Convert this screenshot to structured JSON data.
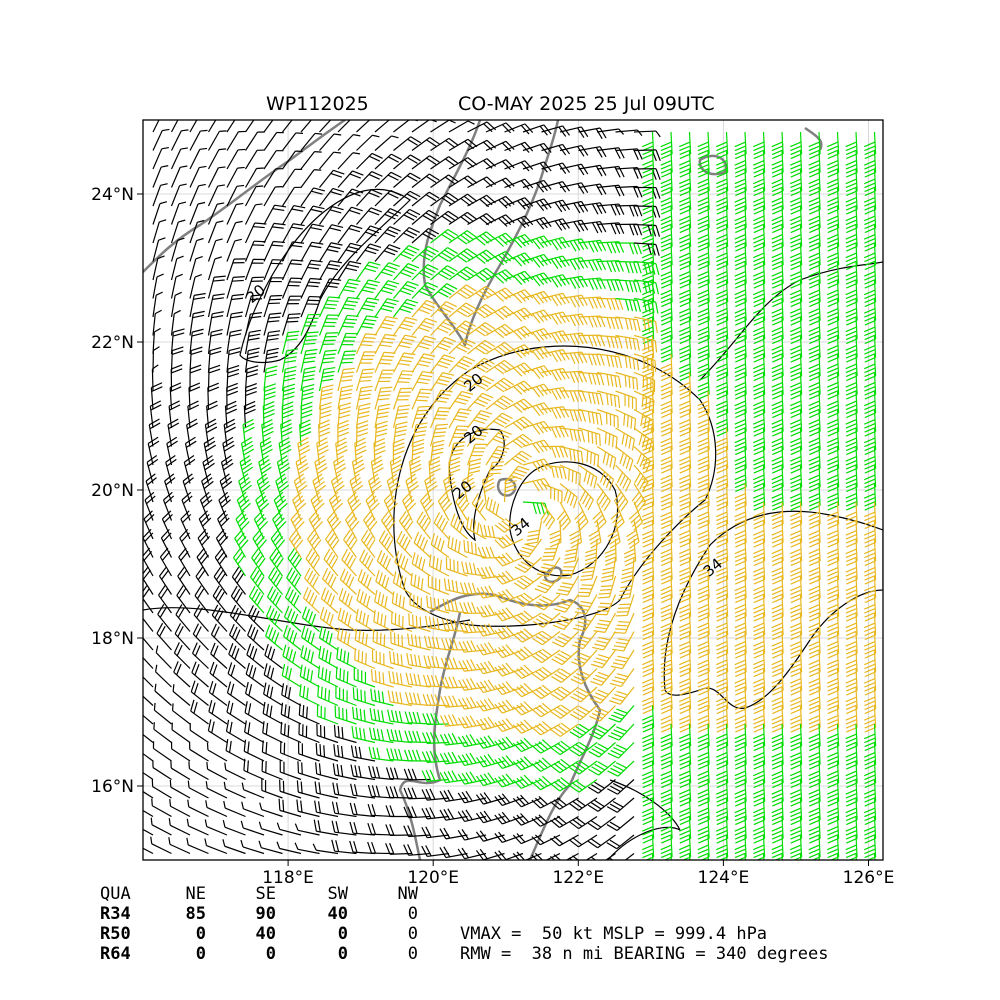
{
  "title": {
    "storm_id": "WP112025",
    "storm_info": "CO-MAY 2025 25 Jul 09UTC"
  },
  "axes": {
    "lon_range": [
      116.0,
      126.2
    ],
    "lat_range": [
      15.0,
      25.0
    ],
    "x_ticks": [
      {
        "value": 118,
        "label": "118°E"
      },
      {
        "value": 120,
        "label": "120°E"
      },
      {
        "value": 122,
        "label": "122°E"
      },
      {
        "value": 124,
        "label": "124°E"
      },
      {
        "value": 126,
        "label": "126°E"
      }
    ],
    "y_ticks": [
      {
        "value": 16,
        "label": "16°N"
      },
      {
        "value": 18,
        "label": "18°N"
      },
      {
        "value": 20,
        "label": "20°N"
      },
      {
        "value": 22,
        "label": "22°N"
      },
      {
        "value": 24,
        "label": "24°N"
      }
    ],
    "grid": true
  },
  "storm": {
    "center_lon": 121.2,
    "center_lat": 19.75
  },
  "colors": {
    "weak": "#000000",
    "gale": "#00dd00",
    "storm": "#e8b820",
    "coast": "#808080"
  },
  "contours": [
    {
      "label": "20",
      "lon": 117.6,
      "lat": 22.6
    },
    {
      "label": "20",
      "lon": 120.6,
      "lat": 21.4
    },
    {
      "label": "20",
      "lon": 120.6,
      "lat": 20.7
    },
    {
      "label": "20",
      "lon": 120.45,
      "lat": 19.95
    },
    {
      "label": "34",
      "lon": 121.25,
      "lat": 19.45
    },
    {
      "label": "34",
      "lon": 123.9,
      "lat": 18.9
    }
  ],
  "quadrants": {
    "header": [
      "QUA",
      "NE",
      "SE",
      "SW",
      "NW"
    ],
    "rows": [
      [
        "R34",
        "85",
        "90",
        "40",
        "0"
      ],
      [
        "R50",
        "0",
        "40",
        "0",
        "0"
      ],
      [
        "R64",
        "0",
        "0",
        "0",
        "0"
      ]
    ]
  },
  "info": {
    "line1": "VMAX =  50 kt MSLP = 999.4 hPa",
    "line2": "RMW =  38 n mi BEARING = 340 degrees"
  }
}
